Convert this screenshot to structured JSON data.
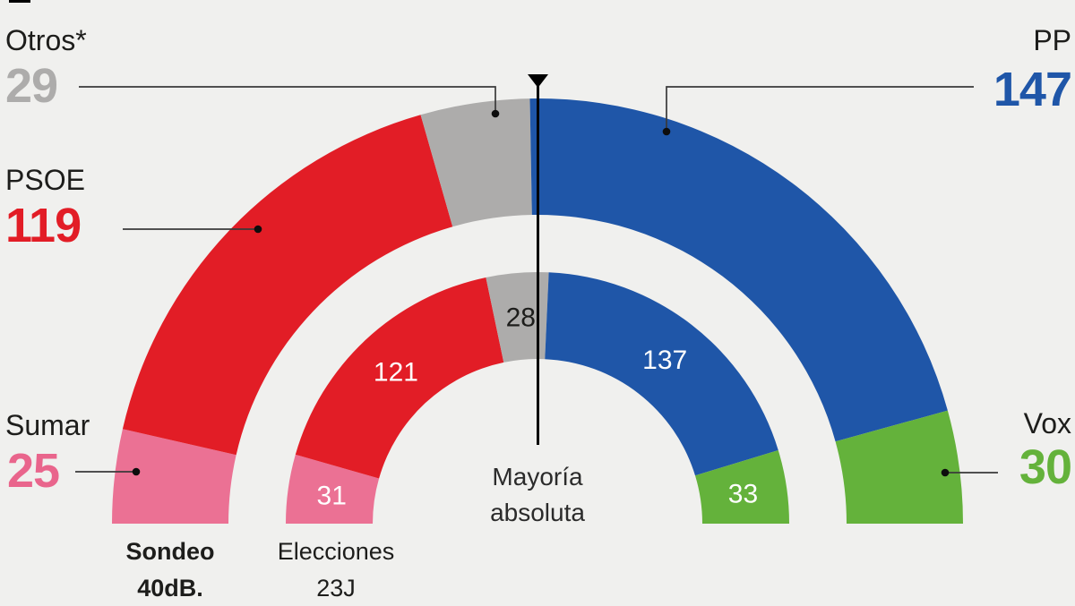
{
  "page": {
    "background": "#f0f0ee"
  },
  "chart_data": {
    "type": "hemicycle-donut",
    "description": "Spanish congress seat projection: poll vs last election, two concentric half-rings of 350 seats",
    "total_seats": 350,
    "majority": {
      "label": "Mayoría absoluta",
      "line1": "Mayoría",
      "line2": "absoluta"
    },
    "rings": [
      {
        "id": "sondeo",
        "label": "Sondeo 40dB.",
        "line1": "Sondeo",
        "line2": "40dB.",
        "key": "poll"
      },
      {
        "id": "elecciones",
        "label": "Elecciones 23J",
        "line1": "Elecciones",
        "line2": "23J",
        "key": "election"
      }
    ],
    "parties": [
      {
        "id": "sumar",
        "name": "Sumar",
        "poll": 25,
        "election": 31,
        "color": "#eb7194",
        "number_color": "#e9658c",
        "inner_label_color": "#ffffff"
      },
      {
        "id": "psoe",
        "name": "PSOE",
        "poll": 119,
        "election": 121,
        "color": "#e21d26",
        "number_color": "#e21d26",
        "inner_label_color": "#ffffff"
      },
      {
        "id": "otros",
        "name": "Otros*",
        "poll": 29,
        "election": 28,
        "color": "#adacab",
        "number_color": "#adacab",
        "inner_label_color": "#1d1d1b"
      },
      {
        "id": "pp",
        "name": "PP",
        "poll": 147,
        "election": 137,
        "color": "#1f56a8",
        "number_color": "#1f56a8",
        "inner_label_color": "#ffffff"
      },
      {
        "id": "vox",
        "name": "Vox",
        "poll": 30,
        "election": 33,
        "color": "#64b23b",
        "number_color": "#64b23b",
        "inner_label_color": "#ffffff"
      }
    ]
  }
}
